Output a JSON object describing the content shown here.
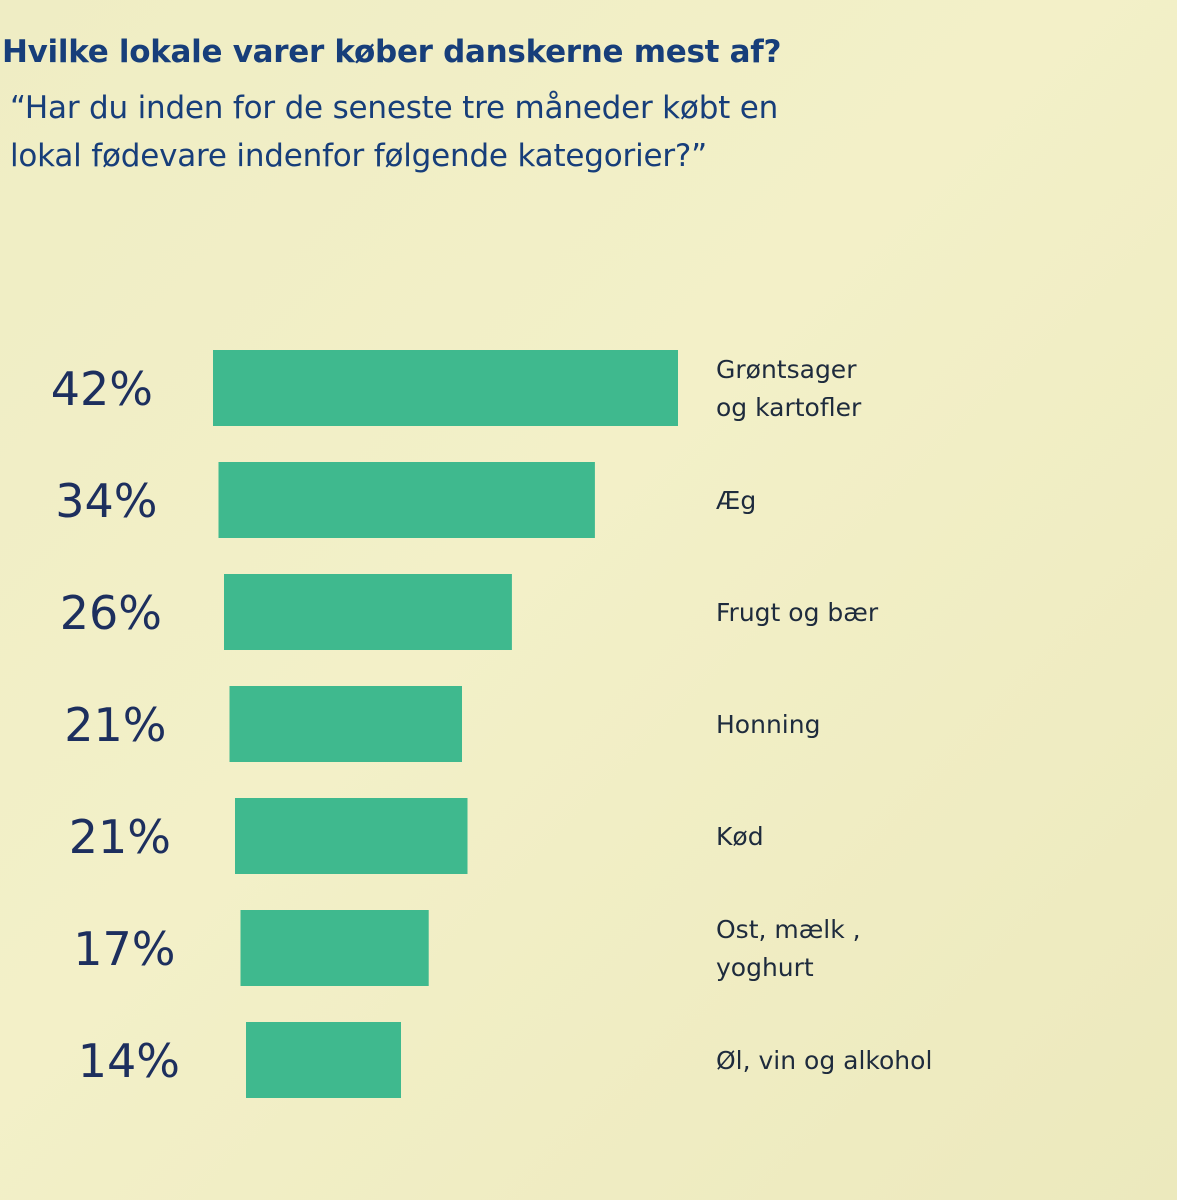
{
  "title": "Hvilke lokale varer køber danskerne mest af?",
  "subtitle_lines": [
    "“Har du inden for de seneste tre måneder købt en",
    "lokal fødevare indenfor følgende kategorier?”"
  ],
  "colors": {
    "bar": "#3fb98e",
    "text": "#173e7a",
    "background": "#f2efc6"
  },
  "chart_data": {
    "type": "bar",
    "orientation": "horizontal",
    "unit": "%",
    "categories": [
      [
        "Grøntsager",
        "og kartofler"
      ],
      [
        "Æg"
      ],
      [
        "Frugt og bær"
      ],
      [
        "Honning"
      ],
      [
        "Kød"
      ],
      [
        "Ost, mælk ,",
        "yoghurt"
      ],
      [
        "Øl, vin og alkohol"
      ]
    ],
    "values": [
      42,
      34,
      26,
      21,
      21,
      17,
      14
    ],
    "value_labels": [
      "42%",
      "34%",
      "26%",
      "21%",
      "21%",
      "17%",
      "14%"
    ],
    "grid": false,
    "legend": "none"
  }
}
